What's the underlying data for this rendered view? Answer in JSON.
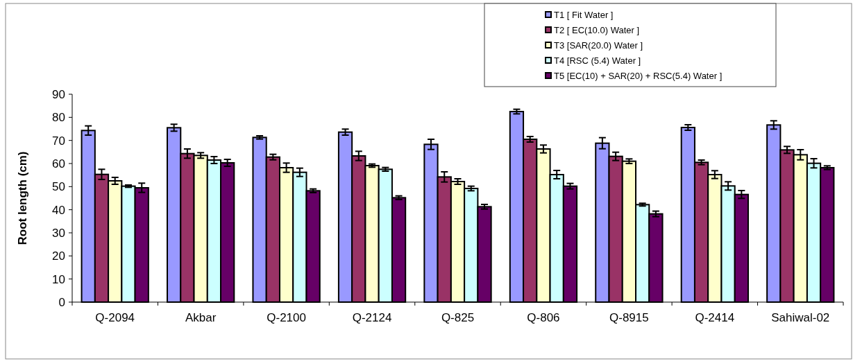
{
  "chart_data": {
    "type": "bar",
    "ylabel": "Root length (cm)",
    "categories": [
      "Q-2094",
      "Akbar",
      "Q-2100",
      "Q-2124",
      "Q-825",
      "Q-806",
      "Q-8915",
      "Q-2414",
      "Sahiwal-02"
    ],
    "series": [
      {
        "name": "T1 [ Fit Water ]",
        "color": "#9999ff",
        "values": [
          74.3,
          75.5,
          71.3,
          73.6,
          68.3,
          82.5,
          68.8,
          75.6,
          76.7
        ],
        "errors": [
          2,
          1.5,
          0.7,
          1.3,
          2.2,
          1,
          2.4,
          1.2,
          1.8
        ]
      },
      {
        "name": "T2 [ EC(10.0) Water ]",
        "color": "#993366",
        "values": [
          55.3,
          64.3,
          62.8,
          63.3,
          54.2,
          70.5,
          63.1,
          60.5,
          65.9
        ],
        "errors": [
          2.2,
          2,
          1.2,
          2,
          2.2,
          1.2,
          1.8,
          1,
          1.5
        ]
      },
      {
        "name": "T3 [SAR(20.0) Water ]",
        "color": "#ffffcc",
        "values": [
          52.5,
          63.5,
          58.2,
          59.1,
          52.2,
          66.3,
          61,
          55.2,
          63.8
        ],
        "errors": [
          1.5,
          1.2,
          2,
          0.7,
          1.2,
          1.7,
          1,
          1.7,
          2.2
        ]
      },
      {
        "name": "T4 [RSC (5.4) Water ]",
        "color": "#ccffff",
        "values": [
          50.2,
          61.5,
          56.2,
          57.5,
          49.2,
          55.2,
          42.2,
          50.3,
          60.1
        ],
        "errors": [
          0.5,
          1.5,
          1.8,
          0.8,
          1,
          1.8,
          0.6,
          1.8,
          2
        ]
      },
      {
        "name": "T5 [EC(10) + SAR(20) + RSC(5.4) Water ]",
        "color": "#660066",
        "values": [
          49.5,
          60.3,
          48.2,
          45.2,
          41.3,
          50.2,
          38.2,
          46.6,
          58.2
        ],
        "errors": [
          2,
          1.5,
          0.8,
          0.8,
          1,
          1.2,
          1.2,
          1.7,
          0.8
        ]
      }
    ],
    "ylim": [
      0,
      90
    ],
    "yticks": [
      0,
      10,
      20,
      30,
      40,
      50,
      60,
      70,
      80,
      90
    ],
    "grid": false,
    "legend": "top right"
  }
}
